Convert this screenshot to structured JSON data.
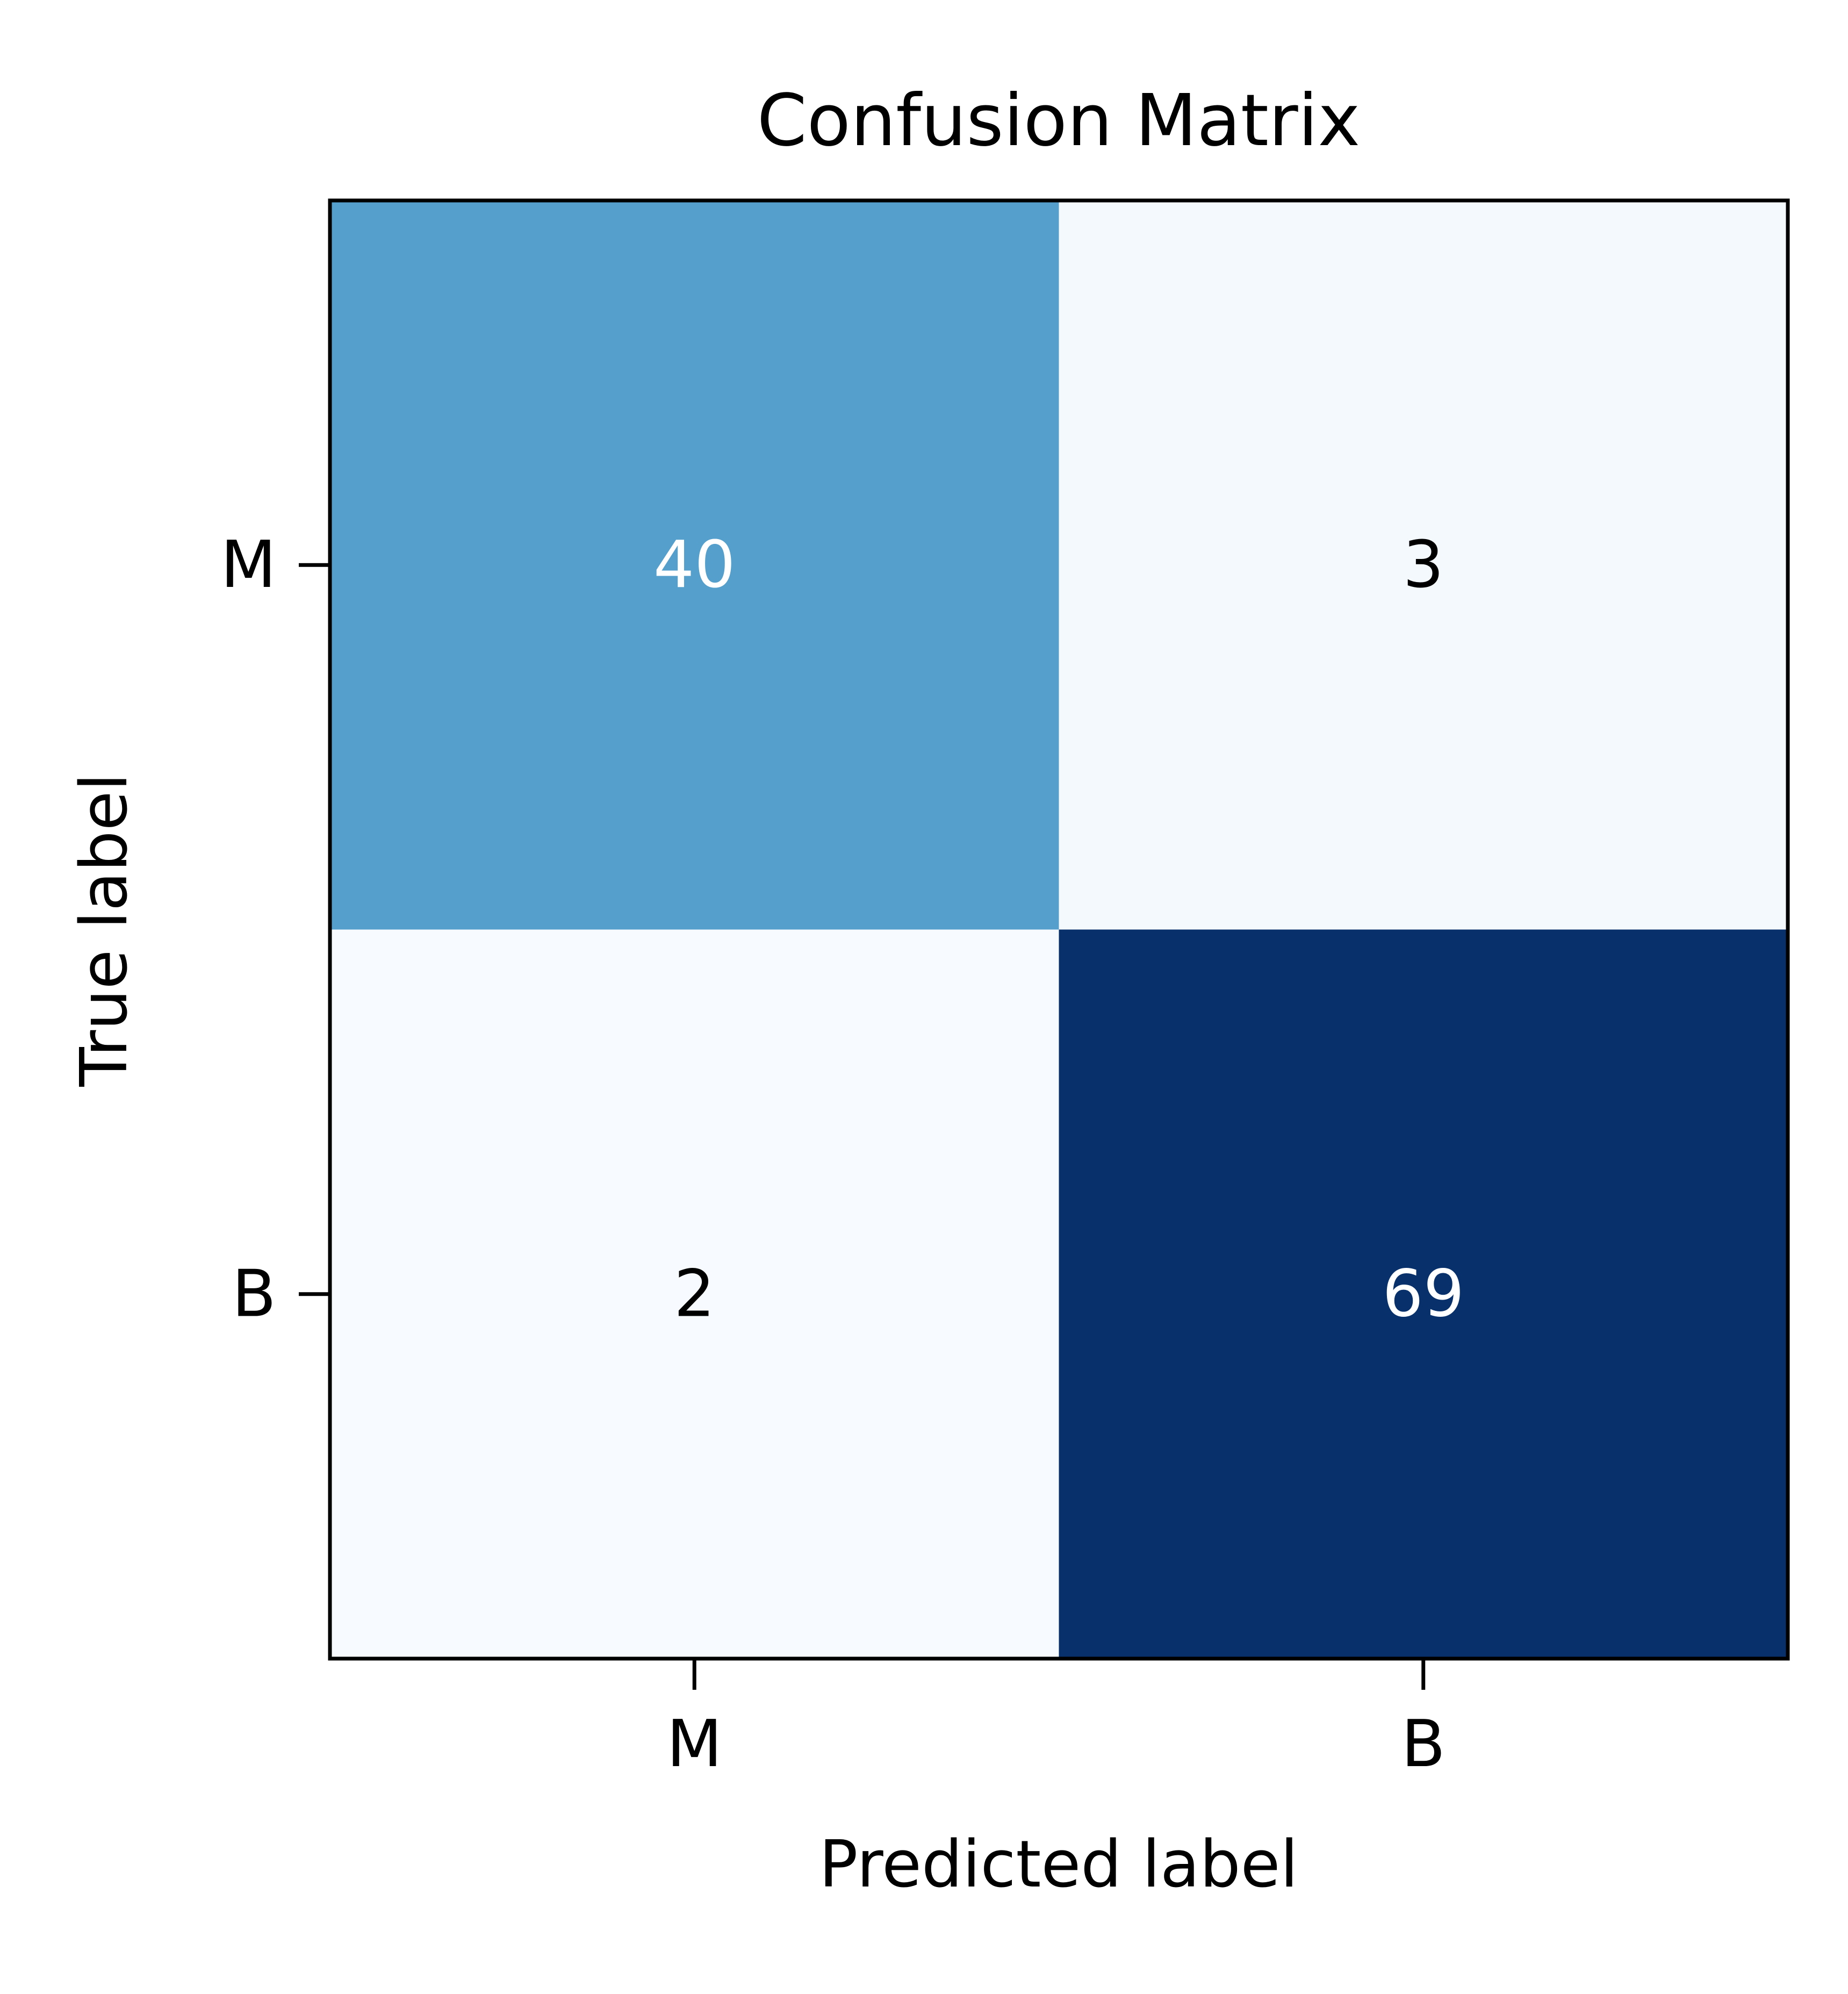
{
  "chart_data": {
    "type": "heatmap",
    "title": "Confusion Matrix",
    "xlabel": "Predicted label",
    "ylabel": "True label",
    "x_categories": [
      "M",
      "B"
    ],
    "y_categories": [
      "M",
      "B"
    ],
    "matrix": [
      [
        40,
        3
      ],
      [
        2,
        69
      ]
    ],
    "colormap": "Blues",
    "colors": {
      "min": "#f7fbff",
      "max": "#08306b",
      "text_dark": "#000000",
      "text_light": "#ffffff"
    }
  }
}
